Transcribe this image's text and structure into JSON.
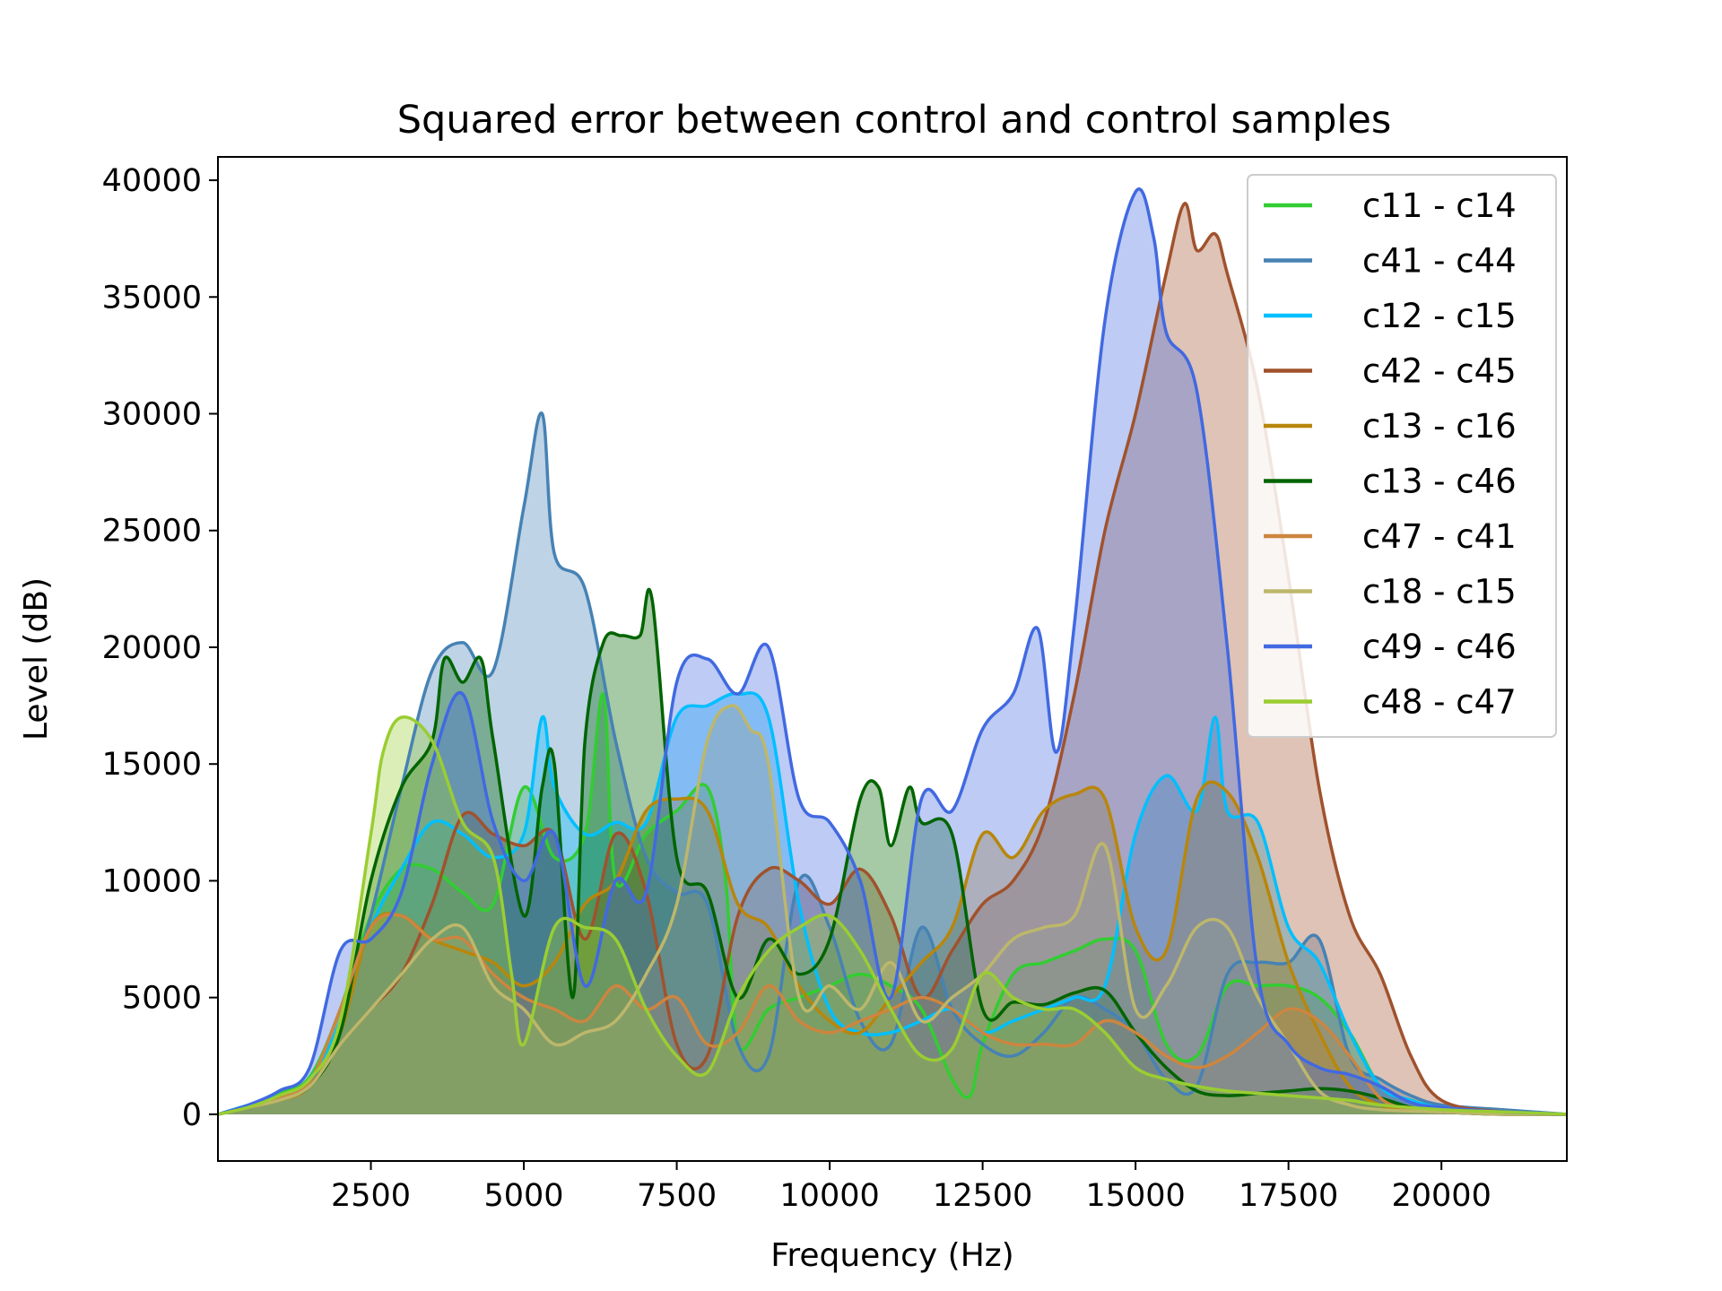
{
  "chart_data": {
    "type": "area",
    "title": "Squared error between control and control samples",
    "xlabel": "Frequency (Hz)",
    "ylabel": "Level (dB)",
    "xlim": [
      0,
      22050
    ],
    "ylim": [
      -2000,
      41000
    ],
    "xticks": [
      2500,
      5000,
      7500,
      10000,
      12500,
      15000,
      17500,
      20000
    ],
    "xtick_labels": [
      "2500",
      "5000",
      "7500",
      "10000",
      "12500",
      "15000",
      "17500",
      "20000"
    ],
    "yticks": [
      0,
      5000,
      10000,
      15000,
      20000,
      25000,
      30000,
      35000,
      40000
    ],
    "ytick_labels": [
      "0",
      "5000",
      "10000",
      "15000",
      "20000",
      "25000",
      "30000",
      "35000",
      "40000"
    ],
    "grid": false,
    "legend_position": "top-right",
    "series": [
      {
        "name": "c11 - c14",
        "color": "#32cd32",
        "x": [
          0,
          500,
          1000,
          1500,
          2000,
          2500,
          3000,
          3500,
          4000,
          4500,
          5000,
          5500,
          6000,
          6300,
          6500,
          7000,
          7500,
          8000,
          8300,
          8500,
          9000,
          9500,
          10000,
          10500,
          11000,
          11500,
          12000,
          12300,
          12500,
          13000,
          13500,
          14000,
          14500,
          15000,
          15500,
          16000,
          16500,
          17000,
          17500,
          18000,
          18500,
          19000,
          19500,
          20000,
          21000,
          22050
        ],
        "y": [
          0,
          400,
          900,
          1600,
          4500,
          8500,
          10500,
          10500,
          9500,
          9000,
          14000,
          11000,
          12000,
          18000,
          10000,
          12000,
          13000,
          14000,
          10000,
          3000,
          4500,
          5000,
          5500,
          6000,
          5500,
          4500,
          1500,
          800,
          3000,
          6000,
          6500,
          7000,
          7500,
          7000,
          3000,
          2500,
          5500,
          5500,
          5500,
          5000,
          3500,
          1200,
          600,
          300,
          100,
          0
        ]
      },
      {
        "name": "c41 - c44",
        "color": "#4682b4",
        "x": [
          0,
          500,
          1000,
          1500,
          2000,
          2500,
          3000,
          3500,
          4000,
          4500,
          5000,
          5300,
          5500,
          6000,
          6500,
          7000,
          7500,
          8000,
          8500,
          9000,
          9500,
          10000,
          10500,
          11000,
          11500,
          12000,
          12500,
          13000,
          13500,
          14000,
          14500,
          15000,
          15500,
          16000,
          16500,
          17000,
          17500,
          18000,
          18500,
          19000,
          19500,
          20000,
          21000,
          22050
        ],
        "y": [
          0,
          300,
          700,
          1300,
          4000,
          8500,
          14000,
          19000,
          20200,
          19000,
          26000,
          30000,
          24000,
          22500,
          16000,
          11000,
          9500,
          9000,
          3000,
          2500,
          10000,
          8000,
          4000,
          3000,
          8000,
          4500,
          3000,
          2500,
          3500,
          5000,
          4500,
          3500,
          1500,
          1200,
          6000,
          6500,
          6500,
          7500,
          2500,
          1500,
          800,
          400,
          200,
          0
        ]
      },
      {
        "name": "c12 - c15",
        "color": "#00bfff",
        "x": [
          0,
          500,
          1000,
          1500,
          2000,
          2500,
          3000,
          3500,
          4000,
          4500,
          5000,
          5300,
          5500,
          6000,
          6500,
          7000,
          7500,
          8000,
          8500,
          9000,
          9500,
          10000,
          10500,
          11000,
          11500,
          12000,
          12500,
          13000,
          13500,
          14000,
          14500,
          15000,
          15500,
          16000,
          16300,
          16500,
          17000,
          17500,
          18000,
          18500,
          19000,
          19500,
          20000,
          21000,
          22050
        ],
        "y": [
          0,
          400,
          800,
          1500,
          4000,
          8000,
          10500,
          12500,
          12000,
          11000,
          12000,
          17000,
          14000,
          12000,
          12500,
          12500,
          17000,
          17500,
          18000,
          17000,
          9000,
          4500,
          3500,
          3500,
          4000,
          4500,
          3500,
          4000,
          4500,
          5000,
          5500,
          12000,
          14500,
          13000,
          17000,
          13000,
          12500,
          8000,
          6500,
          3500,
          1200,
          600,
          300,
          100,
          0
        ]
      },
      {
        "name": "c42 - c45",
        "color": "#a0522d",
        "x": [
          0,
          500,
          1000,
          1500,
          2000,
          2500,
          3000,
          3500,
          4000,
          4500,
          5000,
          5500,
          6000,
          6500,
          7000,
          7500,
          8000,
          8500,
          9000,
          9500,
          10000,
          10500,
          11000,
          11500,
          12000,
          12500,
          13000,
          13500,
          14000,
          14500,
          15000,
          15500,
          15800,
          16000,
          16300,
          16500,
          17000,
          17500,
          18000,
          18500,
          19000,
          19500,
          20000,
          21000,
          22050
        ],
        "y": [
          0,
          300,
          600,
          1200,
          3000,
          4500,
          6000,
          9000,
          12800,
          12000,
          11500,
          12000,
          7500,
          12000,
          9500,
          3000,
          2500,
          8500,
          10500,
          10000,
          9000,
          10500,
          8500,
          5000,
          7000,
          9000,
          10000,
          12500,
          18000,
          25000,
          30000,
          36000,
          39000,
          37000,
          37700,
          36000,
          31000,
          23000,
          14000,
          8500,
          6000,
          2500,
          600,
          100,
          0
        ]
      },
      {
        "name": "c13 - c16",
        "color": "#b8860b",
        "x": [
          0,
          500,
          1000,
          1500,
          2000,
          2500,
          3000,
          3500,
          4000,
          4500,
          5000,
          5500,
          6000,
          6500,
          7000,
          7500,
          8000,
          8500,
          9000,
          9500,
          10000,
          10500,
          11000,
          11500,
          12000,
          12500,
          13000,
          13500,
          14000,
          14500,
          15000,
          15500,
          16000,
          16500,
          17000,
          17500,
          18000,
          18500,
          19000,
          19500,
          20000,
          21000,
          22050
        ],
        "y": [
          0,
          300,
          600,
          1200,
          3500,
          8000,
          8500,
          7500,
          7000,
          6500,
          5500,
          6500,
          9000,
          10000,
          13000,
          13500,
          13000,
          9000,
          8000,
          5500,
          4000,
          3500,
          5000,
          6500,
          8000,
          12000,
          11000,
          13000,
          13700,
          13500,
          8000,
          7000,
          13500,
          13800,
          11000,
          6500,
          3500,
          1200,
          400,
          200,
          100,
          0,
          0
        ]
      },
      {
        "name": "c13 - c46",
        "color": "#006400",
        "x": [
          0,
          500,
          1000,
          1500,
          2000,
          2500,
          3000,
          3500,
          3700,
          4000,
          4300,
          4500,
          5000,
          5300,
          5500,
          5800,
          6000,
          6300,
          6600,
          6900,
          7100,
          7500,
          8000,
          8500,
          9000,
          9500,
          10000,
          10500,
          10800,
          11000,
          11300,
          11500,
          12000,
          12500,
          13000,
          13500,
          14000,
          14500,
          15000,
          15500,
          16000,
          16500,
          17000,
          17500,
          18000,
          18500,
          19000,
          19500,
          20000,
          21000,
          22050
        ],
        "y": [
          0,
          300,
          700,
          1200,
          3500,
          10000,
          14000,
          16000,
          19500,
          18500,
          19500,
          16000,
          8500,
          14000,
          15000,
          5000,
          16000,
          20200,
          20500,
          20500,
          22000,
          11000,
          9500,
          5000,
          7500,
          6000,
          7500,
          13500,
          14000,
          11500,
          14000,
          12500,
          12000,
          4500,
          4800,
          4700,
          5200,
          5300,
          3500,
          2000,
          1000,
          800,
          900,
          1000,
          1100,
          1000,
          700,
          300,
          100,
          0,
          0
        ]
      },
      {
        "name": "c47 - c41",
        "color": "#cd853f",
        "x": [
          0,
          500,
          1000,
          1500,
          2000,
          2500,
          3000,
          3500,
          4000,
          4500,
          5000,
          5500,
          6000,
          6500,
          7000,
          7500,
          8000,
          8500,
          9000,
          9500,
          10000,
          10500,
          11000,
          11500,
          12000,
          12500,
          13000,
          13500,
          14000,
          14500,
          15000,
          15500,
          16000,
          16500,
          17000,
          17500,
          18000,
          18500,
          19000,
          19500,
          20000,
          21000,
          22050
        ],
        "y": [
          0,
          300,
          700,
          1400,
          4500,
          8000,
          8500,
          7500,
          7500,
          6000,
          5000,
          4500,
          4000,
          5500,
          4500,
          5000,
          3000,
          3500,
          5500,
          4000,
          3500,
          4000,
          4500,
          5000,
          4500,
          3500,
          3000,
          3000,
          3000,
          4000,
          3500,
          2500,
          2000,
          2500,
          3500,
          4500,
          4000,
          2500,
          700,
          200,
          100,
          0,
          0
        ]
      },
      {
        "name": "c18 - c15",
        "color": "#bdb76b",
        "x": [
          0,
          500,
          1000,
          1500,
          2000,
          2500,
          3000,
          3500,
          4000,
          4500,
          5000,
          5500,
          6000,
          6500,
          7000,
          7500,
          8000,
          8400,
          8700,
          9000,
          9500,
          10000,
          10500,
          11000,
          11500,
          12000,
          12500,
          13000,
          13500,
          14000,
          14500,
          15000,
          15500,
          16000,
          16500,
          17000,
          17500,
          18000,
          18500,
          19000,
          20000,
          21000,
          22050
        ],
        "y": [
          0,
          300,
          600,
          1200,
          3000,
          4500,
          6000,
          7500,
          8000,
          5500,
          4500,
          3000,
          3500,
          4000,
          6000,
          9000,
          16000,
          17500,
          16500,
          15000,
          5000,
          5500,
          4500,
          6500,
          4000,
          5000,
          6000,
          7500,
          8000,
          8500,
          11500,
          4500,
          5500,
          8000,
          8000,
          5000,
          3000,
          1000,
          400,
          200,
          100,
          0,
          0
        ]
      },
      {
        "name": "c49 - c46",
        "color": "#4169e1",
        "x": [
          0,
          500,
          1000,
          1500,
          2000,
          2500,
          3000,
          3500,
          4000,
          4500,
          5000,
          5500,
          6000,
          6500,
          7000,
          7500,
          8000,
          8500,
          9000,
          9500,
          10000,
          10500,
          11000,
          11500,
          12000,
          12500,
          13000,
          13400,
          13700,
          14000,
          14500,
          15000,
          15300,
          15500,
          16000,
          16500,
          17000,
          17500,
          18000,
          18500,
          19000,
          19500,
          20000,
          21000,
          22050
        ],
        "y": [
          0,
          400,
          1000,
          2000,
          7000,
          7500,
          9500,
          15000,
          18000,
          12500,
          10000,
          12000,
          5500,
          10000,
          9500,
          18500,
          19500,
          18000,
          20000,
          13500,
          12500,
          10000,
          5000,
          13500,
          13000,
          16500,
          18000,
          20800,
          15500,
          21000,
          34000,
          39500,
          37500,
          33500,
          31000,
          20000,
          6000,
          3000,
          2000,
          1700,
          1200,
          500,
          300,
          100,
          0
        ]
      },
      {
        "name": "c48 - c47",
        "color": "#9acd32",
        "x": [
          0,
          500,
          1000,
          1500,
          2000,
          2500,
          2700,
          3000,
          3500,
          4000,
          4500,
          4800,
          5000,
          5500,
          6000,
          6500,
          7000,
          7500,
          8000,
          8500,
          9000,
          9500,
          10000,
          10500,
          11000,
          11500,
          12000,
          12500,
          13000,
          13500,
          14000,
          14500,
          15000,
          15500,
          16000,
          16500,
          17000,
          17500,
          18000,
          18500,
          19000,
          20000,
          21000,
          22050
        ],
        "y": [
          0,
          300,
          800,
          1500,
          4000,
          12000,
          15500,
          17000,
          16000,
          12500,
          11000,
          6000,
          3000,
          8000,
          8000,
          7500,
          4500,
          2500,
          1800,
          5000,
          7000,
          8000,
          8500,
          7000,
          4500,
          2500,
          2800,
          6000,
          5000,
          4500,
          4500,
          3500,
          2000,
          1500,
          1200,
          1000,
          900,
          800,
          700,
          600,
          400,
          200,
          100,
          0
        ]
      }
    ]
  }
}
